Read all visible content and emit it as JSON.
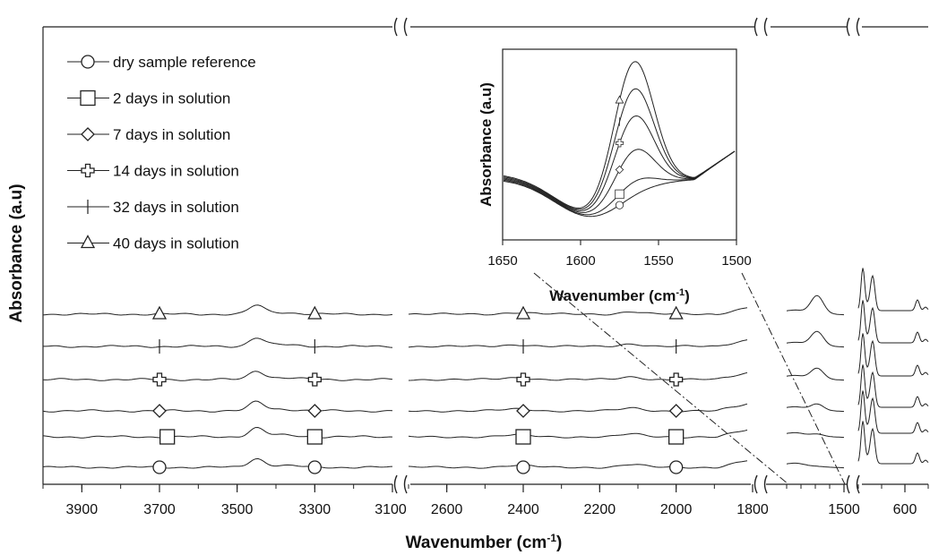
{
  "chart_data": {
    "type": "line",
    "xlabel": "Wavenumber (cm",
    "xlabel_sup": "-1",
    "xlabel_end": ")",
    "ylabel": "Absorbance (a.u)",
    "x_direction": "decreasing",
    "broken_axis": true,
    "x_segments": [
      {
        "range": [
          4000,
          3100
        ],
        "tick_labels": [
          "3900",
          "3700",
          "3500",
          "3300",
          "3100"
        ]
      },
      {
        "range": [
          2700,
          1800
        ],
        "tick_labels": [
          "2600",
          "2400",
          "2200",
          "2000",
          "1800"
        ]
      },
      {
        "range": [
          1700,
          1500
        ],
        "tick_labels": [
          "1500"
        ]
      },
      {
        "range": [
          700,
          550
        ],
        "tick_labels": [
          "600"
        ]
      }
    ],
    "legend": {
      "placement": "top-left"
    },
    "series": [
      {
        "name": "dry sample reference",
        "marker": "circle",
        "marker_x": [
          3700,
          3300,
          2400,
          2000
        ]
      },
      {
        "name": "2 days in solution",
        "marker": "square",
        "marker_x": [
          3680,
          3300,
          2400,
          2000
        ]
      },
      {
        "name": "7 days in solution",
        "marker": "diamond",
        "marker_x": [
          3700,
          3300,
          2400,
          2000
        ]
      },
      {
        "name": "14 days in solution",
        "marker": "cross",
        "marker_x": [
          3700,
          3300,
          2400,
          2000
        ]
      },
      {
        "name": "32 days in solution",
        "marker": "vline",
        "marker_x": [
          3700,
          3300,
          2400,
          2000
        ]
      },
      {
        "name": "40 days in solution",
        "marker": "triangle",
        "marker_x": [
          3700,
          3300,
          2400,
          2000
        ]
      }
    ],
    "inset": {
      "xlim": [
        1650,
        1500
      ],
      "x_ticks": [
        "1650",
        "1600",
        "1550",
        "1500"
      ],
      "xlabel": "Wavenumber (cm",
      "xlabel_sup": "-1",
      "xlabel_end": ")",
      "ylabel": "Absorbance (a.u)",
      "peak_x": 1566,
      "marker_x": 1575,
      "relative_peak_height": [
        0.02,
        0.12,
        0.35,
        0.6,
        0.8,
        1.0
      ]
    }
  }
}
